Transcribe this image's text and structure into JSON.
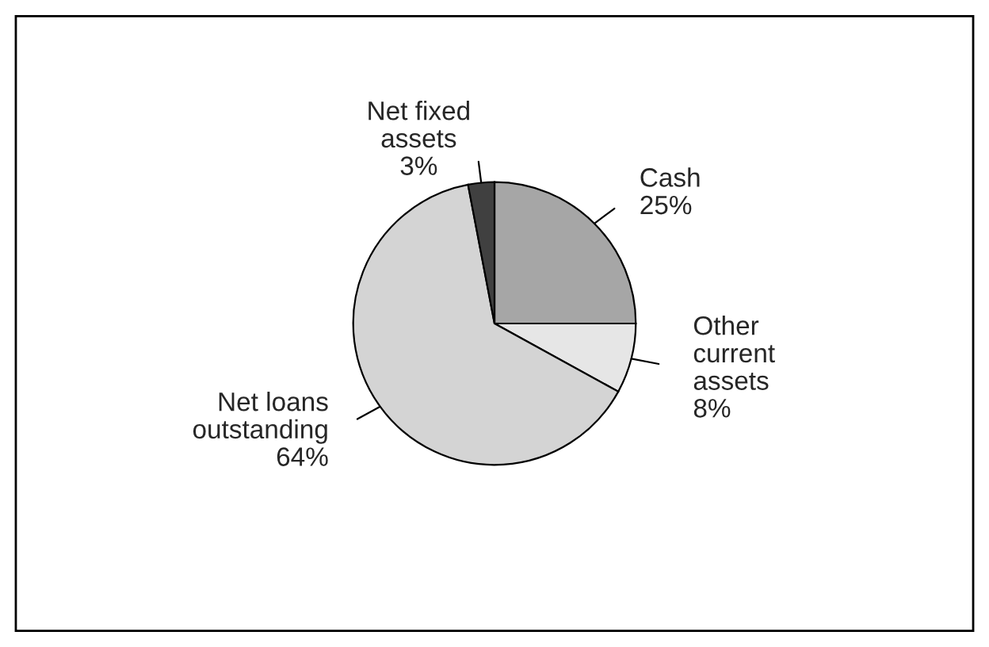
{
  "chart_data": {
    "type": "pie",
    "categories": [
      "Cash",
      "Other\ncurrent\nassets",
      "Net loans\noutstanding",
      "Net fixed\nassets"
    ],
    "values": [
      25,
      8,
      64,
      3
    ],
    "value_labels": [
      "25%",
      "8%",
      "64%",
      "3%"
    ],
    "colors": [
      "#a6a6a6",
      "#e6e6e6",
      "#d4d4d4",
      "#404040"
    ]
  }
}
